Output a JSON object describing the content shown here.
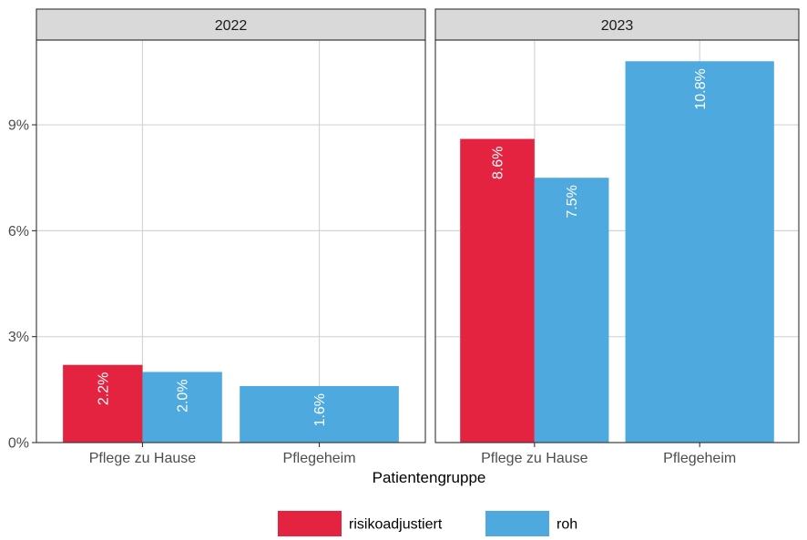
{
  "chart_data": {
    "type": "bar",
    "xlabel": "Patientengruppe",
    "ylabel": "",
    "ylim": [
      0,
      11.4
    ],
    "y_ticks": [
      0,
      3,
      6,
      9
    ],
    "y_tick_labels": [
      "0%",
      "3%",
      "6%",
      "9%"
    ],
    "categories": [
      "Pflege zu Hause",
      "Pflegeheim"
    ],
    "grid": true,
    "legend_position": "bottom",
    "legend": [
      {
        "key": "risikoadjustiert",
        "label": "risikoadjustiert",
        "color": "#E3233F"
      },
      {
        "key": "roh",
        "label": "roh",
        "color": "#4EA9DF"
      }
    ],
    "panels": [
      {
        "title": "2022",
        "bars": [
          {
            "category": "Pflege zu Hause",
            "series": "risikoadjustiert",
            "value": 2.2,
            "label": "2.2%"
          },
          {
            "category": "Pflege zu Hause",
            "series": "roh",
            "value": 2.0,
            "label": "2.0%"
          },
          {
            "category": "Pflegeheim",
            "series": "roh",
            "value": 1.6,
            "label": "1.6%"
          }
        ]
      },
      {
        "title": "2023",
        "bars": [
          {
            "category": "Pflege zu Hause",
            "series": "risikoadjustiert",
            "value": 8.6,
            "label": "8.6%"
          },
          {
            "category": "Pflege zu Hause",
            "series": "roh",
            "value": 7.5,
            "label": "7.5%"
          },
          {
            "category": "Pflegeheim",
            "series": "roh",
            "value": 10.8,
            "label": "10.8%"
          }
        ]
      }
    ]
  }
}
